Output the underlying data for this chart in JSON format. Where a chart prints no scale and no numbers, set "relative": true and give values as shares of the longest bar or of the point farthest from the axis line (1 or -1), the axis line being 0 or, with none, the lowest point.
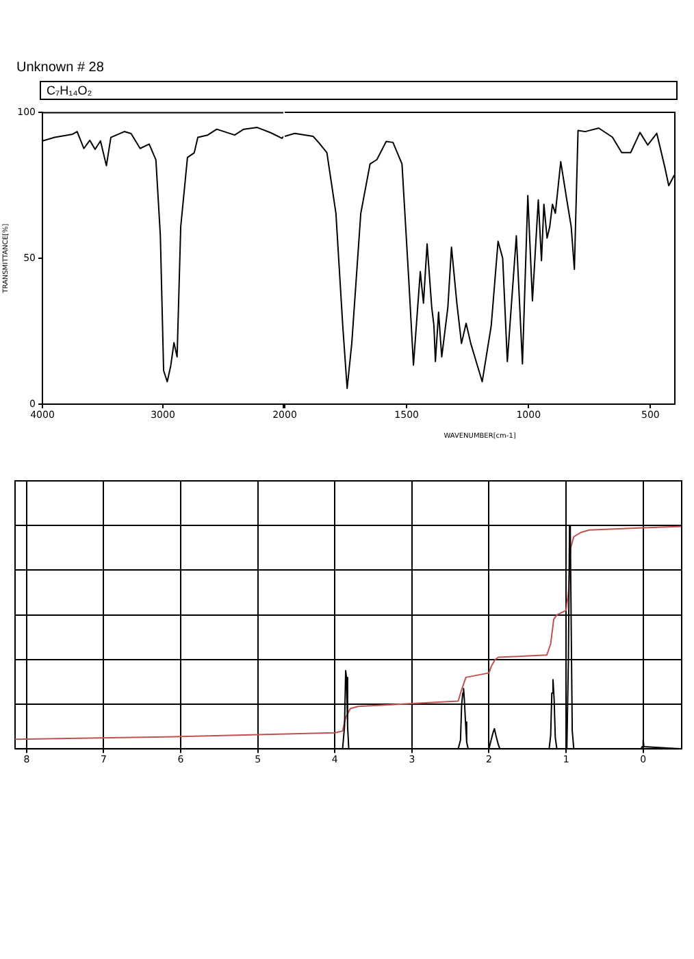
{
  "chart_data": [
    {
      "type": "line",
      "title": "Unknown # 28",
      "subtitle": "C₇H₁₄O₂",
      "ylabel": "TRANSMITTANCE[%]",
      "xlim": [
        4000,
        2000
      ],
      "xticks": [
        4000,
        3000,
        {
          "value": 2000,
          "label": null
        }
      ],
      "ylim": [
        0,
        100
      ],
      "yticks": [
        0,
        50,
        100
      ],
      "series": [
        {
          "color": "#000000",
          "x": [
            4000,
            3899,
            3750,
            3712,
            3656,
            3607,
            3563,
            3518,
            3469,
            3432,
            3320,
            3264,
            3189,
            3114,
            3058,
            3021,
            2994,
            2964,
            2935,
            2908,
            2882,
            2852,
            2796,
            2740,
            2710,
            2628,
            2553,
            2404,
            2329,
            2217,
            2105,
            2011,
            2000
          ],
          "values": [
            90.3,
            91.5,
            92.6,
            93.5,
            87.7,
            90.5,
            87.4,
            90.3,
            81.8,
            91.5,
            93.5,
            92.8,
            87.7,
            89.2,
            83.8,
            57.7,
            11.5,
            7.7,
            13.1,
            21.1,
            16.2,
            60.8,
            84.6,
            86.2,
            91.5,
            92.3,
            94.3,
            92.3,
            94.3,
            94.9,
            93.1,
            91.2,
            91.8
          ]
        }
      ]
    },
    {
      "type": "line",
      "xlabel": "WAVENUMBER[cm-1]",
      "tick_labels": "x",
      "xlim": [
        2000,
        400
      ],
      "xticks": [
        2000,
        1500,
        1000,
        500
      ],
      "ylim": [
        0,
        100
      ],
      "yticks": [
        0,
        50,
        100
      ],
      "series": [
        {
          "color": "#000000",
          "x": [
            2000,
            1959,
            1884,
            1856,
            1827,
            1790,
            1762,
            1744,
            1725,
            1688,
            1650,
            1622,
            1584,
            1556,
            1519,
            1491,
            1472,
            1444,
            1431,
            1416,
            1397,
            1388,
            1382,
            1369,
            1356,
            1331,
            1316,
            1294,
            1275,
            1256,
            1237,
            1190,
            1153,
            1125,
            1106,
            1087,
            1050,
            1025,
            1003,
            984,
            960,
            947,
            937,
            924,
            913,
            902,
            890,
            868,
            843,
            825,
            812,
            797,
            768,
            712,
            656,
            618,
            581,
            543,
            511,
            474,
            440,
            425,
            402
          ],
          "values": [
            91.8,
            92.8,
            91.8,
            89.2,
            86.2,
            65.4,
            26.9,
            5.4,
            20.8,
            65.4,
            82.3,
            83.8,
            90,
            89.7,
            82.3,
            42.3,
            13.4,
            45.4,
            34.6,
            54.9,
            33.1,
            26.9,
            14.6,
            31.5,
            16.2,
            33.1,
            53.8,
            34.6,
            20.8,
            27.7,
            20.8,
            7.7,
            26.9,
            55.8,
            50,
            14.6,
            57.7,
            13.8,
            71.5,
            35.4,
            70,
            49.2,
            68.5,
            56.9,
            60.8,
            68.5,
            65.4,
            83.1,
            70,
            60.8,
            46.2,
            93.8,
            93.4,
            94.6,
            91.5,
            86.2,
            86.2,
            93.1,
            88.8,
            92.8,
            80.8,
            74.9,
            78.5
          ]
        }
      ]
    },
    {
      "type": "line",
      "relative": true,
      "grid": true,
      "xlim": [
        8.15,
        -0.5
      ],
      "xticks": [
        8,
        7,
        6,
        5,
        4,
        3,
        2,
        1,
        0
      ],
      "series": [
        {
          "color": "#000000",
          "x": [
            8.15,
            3.9,
            3.875,
            3.86,
            3.85,
            3.835,
            3.82,
            2.4,
            2.37,
            2.355,
            2.34,
            2.33,
            2.32,
            2.305,
            2.29,
            2.27,
            2.0,
            1.98,
            1.95,
            1.93,
            1.91,
            1.88,
            1.86,
            1.22,
            1.2,
            1.185,
            1.17,
            1.155,
            1.14,
            1.12,
            0.99,
            0.97,
            0.955,
            0.945,
            0.935,
            0.92,
            0.9,
            0.03,
            0.01,
            0.0,
            -0.01,
            -0.5
          ],
          "values": [
            0,
            0,
            0.1,
            0.35,
            0.32,
            0.1,
            0,
            0,
            0.04,
            0.2,
            0.25,
            0.27,
            0.22,
            0.12,
            0.03,
            0,
            0,
            0.03,
            0.07,
            0.09,
            0.06,
            0.02,
            0,
            0,
            0.06,
            0.25,
            0.31,
            0.22,
            0.05,
            0,
            0,
            0.4,
            1.0,
            0.97,
            0.6,
            0.08,
            0,
            0,
            0.01,
            0.04,
            0.01,
            0
          ]
        },
        {
          "color": "#c0504d",
          "x": [
            8.15,
            6.0,
            4.0,
            3.9,
            3.86,
            3.8,
            3.7,
            2.4,
            2.36,
            2.3,
            2.0,
            1.97,
            1.92,
            1.88,
            1.25,
            1.2,
            1.16,
            1.12,
            1.0,
            0.97,
            0.94,
            0.9,
            0.8,
            0.7,
            0.0,
            -0.5
          ],
          "values": [
            0.043,
            0.055,
            0.072,
            0.08,
            0.14,
            0.18,
            0.19,
            0.214,
            0.26,
            0.32,
            0.34,
            0.37,
            0.4,
            0.41,
            0.42,
            0.47,
            0.58,
            0.6,
            0.62,
            0.7,
            0.9,
            0.95,
            0.97,
            0.98,
            0.99,
            0.996
          ]
        }
      ]
    }
  ]
}
